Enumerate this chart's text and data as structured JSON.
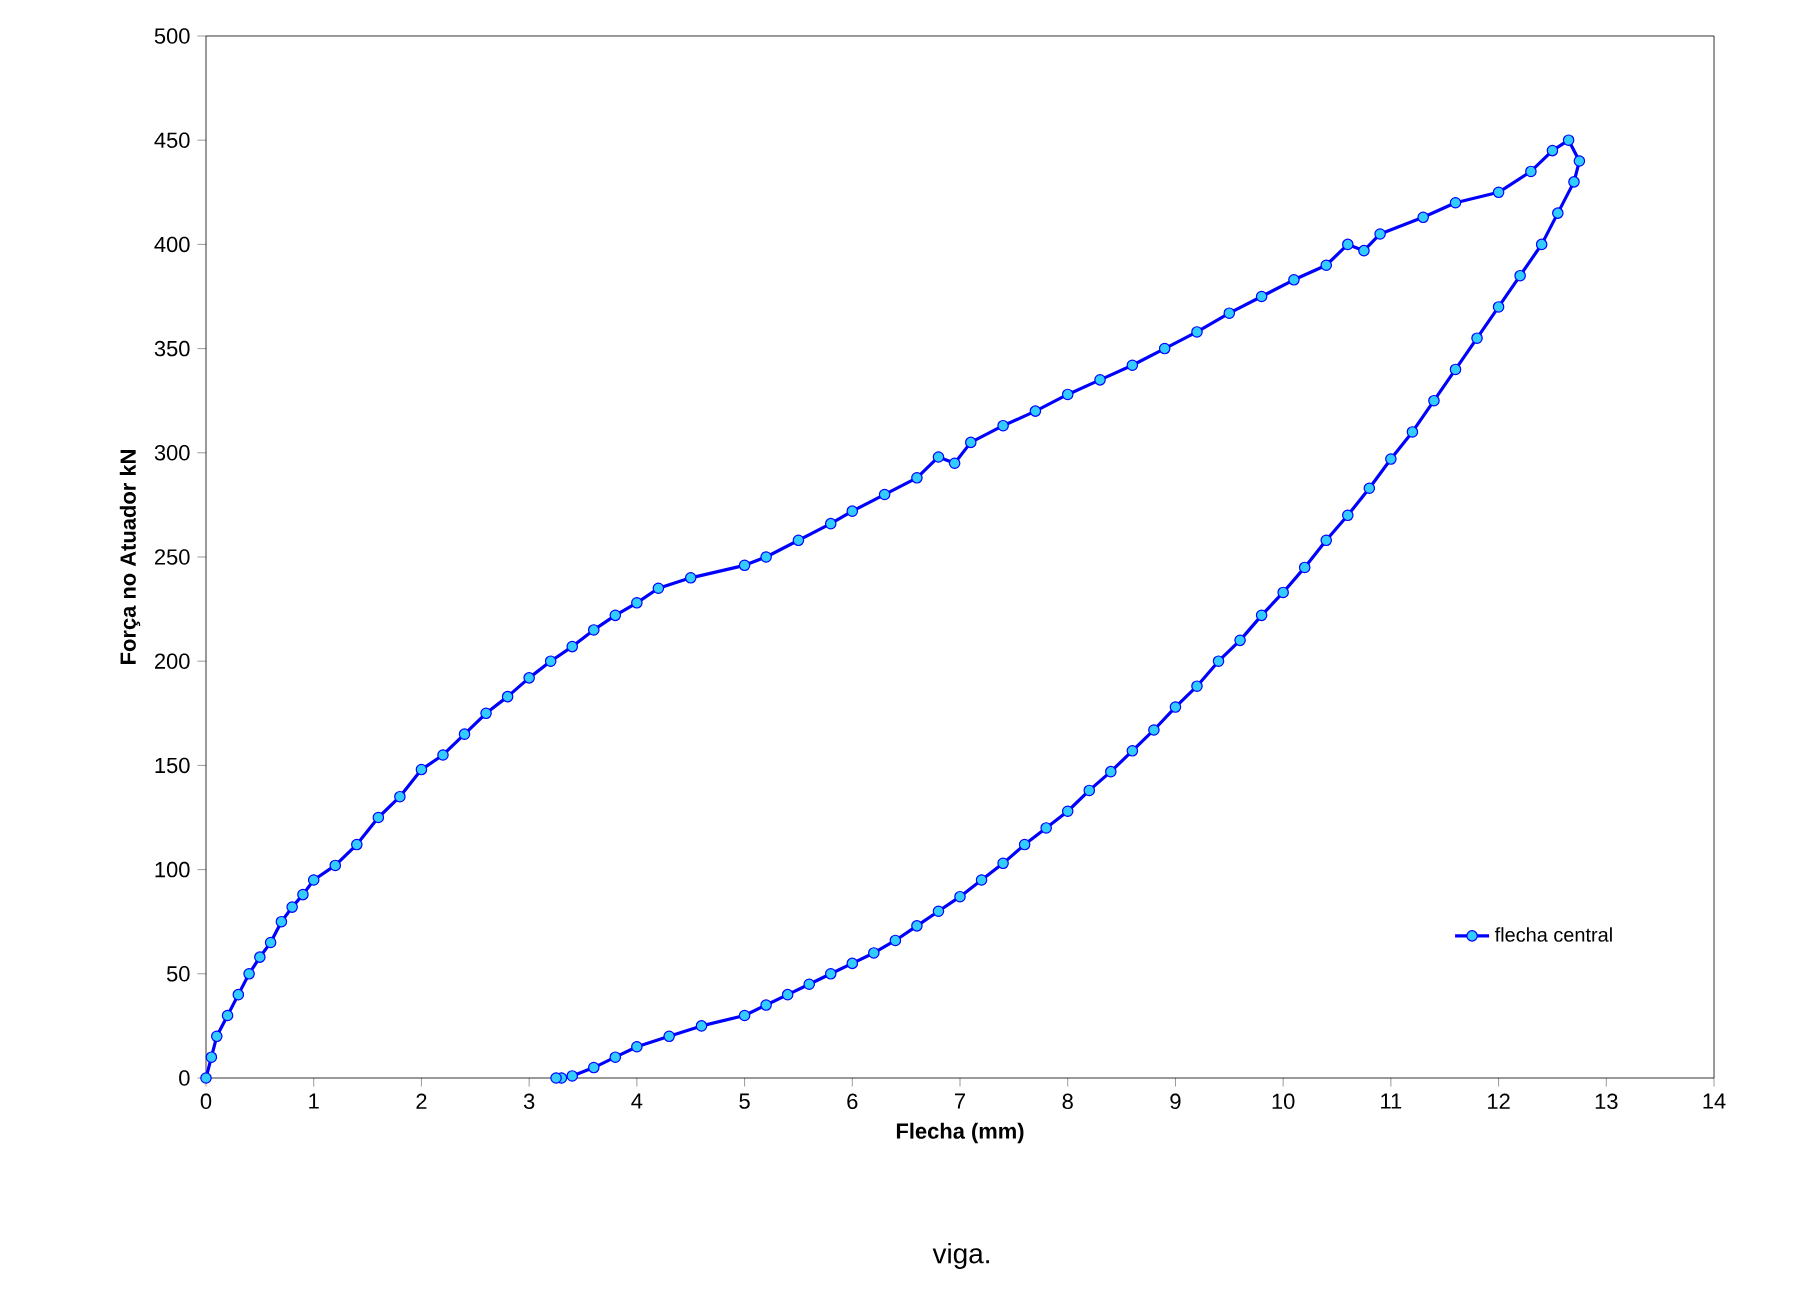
{
  "chart_data": {
    "type": "line",
    "xlabel": "Flecha (mm)",
    "ylabel": "Força no Atuador kN",
    "annotations": [
      "viga."
    ],
    "xlim": [
      0,
      14
    ],
    "ylim": [
      0,
      500
    ],
    "xticks": [
      0,
      1,
      2,
      3,
      4,
      5,
      6,
      7,
      8,
      9,
      10,
      11,
      12,
      13,
      14
    ],
    "yticks": [
      0,
      50,
      100,
      150,
      200,
      250,
      300,
      350,
      400,
      450,
      500
    ],
    "grid": false,
    "legend": "bottom right",
    "marker": "circle",
    "line_style": "solid",
    "series": [
      {
        "name": "flecha central",
        "color": "#0000ff",
        "x": [
          0,
          0.05,
          0.1,
          0.2,
          0.3,
          0.4,
          0.5,
          0.6,
          0.7,
          0.8,
          0.9,
          1,
          1.2,
          1.4,
          1.6,
          1.8,
          2,
          2.2,
          2.4,
          2.6,
          2.8,
          3,
          3.2,
          3.4,
          3.6,
          3.8,
          4,
          4.2,
          4.5,
          5,
          5.2,
          5.5,
          5.8,
          6,
          6.3,
          6.6,
          6.8,
          6.95,
          7.1,
          7.4,
          7.7,
          8,
          8.3,
          8.6,
          8.9,
          9.2,
          9.5,
          9.8,
          10.1,
          10.4,
          10.6,
          10.75,
          10.9,
          11.3,
          11.6,
          12,
          12.3,
          12.5,
          12.65,
          12.75,
          12.7,
          12.55,
          12.4,
          12.2,
          12,
          11.8,
          11.6,
          11.4,
          11.2,
          11,
          10.8,
          10.6,
          10.4,
          10.2,
          10,
          9.8,
          9.6,
          9.4,
          9.2,
          9,
          8.8,
          8.6,
          8.4,
          8.2,
          8,
          7.8,
          7.6,
          7.4,
          7.2,
          7,
          6.8,
          6.6,
          6.4,
          6.2,
          6,
          5.8,
          5.6,
          5.4,
          5.2,
          5,
          4.6,
          4.3,
          4,
          3.8,
          3.6,
          3.4,
          3.3,
          3.25
        ],
        "values": [
          0,
          10,
          20,
          30,
          40,
          50,
          58,
          65,
          75,
          82,
          88,
          95,
          102,
          112,
          125,
          135,
          148,
          155,
          165,
          175,
          183,
          192,
          200,
          207,
          215,
          222,
          228,
          235,
          240,
          246,
          250,
          258,
          266,
          272,
          280,
          288,
          298,
          295,
          305,
          313,
          320,
          328,
          335,
          342,
          350,
          358,
          367,
          375,
          383,
          390,
          400,
          397,
          405,
          413,
          420,
          425,
          435,
          445,
          450,
          440,
          430,
          415,
          400,
          385,
          370,
          355,
          340,
          325,
          310,
          297,
          283,
          270,
          258,
          245,
          233,
          222,
          210,
          200,
          188,
          178,
          167,
          157,
          147,
          138,
          128,
          120,
          112,
          103,
          95,
          87,
          80,
          73,
          66,
          60,
          55,
          50,
          45,
          40,
          35,
          30,
          25,
          20,
          15,
          10,
          5,
          1,
          0,
          0
        ]
      }
    ]
  }
}
